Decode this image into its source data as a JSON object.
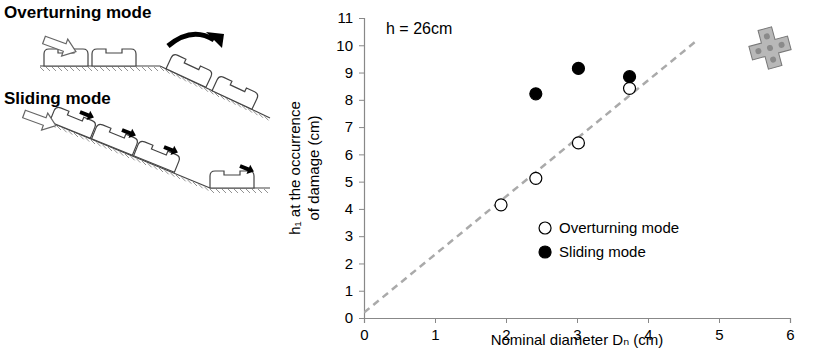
{
  "chart_data": {
    "type": "scatter",
    "annotation": "h = 26cm",
    "x_label": "Nominal diameter Dₙ (cm)",
    "y_label": "h₁ at the occurrence of damage (cm)",
    "xlim": [
      0,
      6
    ],
    "xticks": [
      0,
      1,
      2,
      3,
      4,
      5,
      6
    ],
    "ylim": [
      0,
      11
    ],
    "yticks": [
      0,
      1,
      2,
      3,
      4,
      5,
      6,
      7,
      8,
      9,
      10,
      11
    ],
    "grid": false,
    "legend": "lower right",
    "series": [
      {
        "name": "Overturning mode",
        "type": "scatter",
        "marker": "open_circle",
        "color": "#000000",
        "x": [
          1.93,
          2.42,
          3.02,
          3.74
        ],
        "values": [
          4.15,
          5.12,
          6.42,
          8.42
        ]
      },
      {
        "name": "Sliding mode",
        "type": "scatter",
        "marker": "filled_circle",
        "color": "#000000",
        "x": [
          2.42,
          3.02,
          3.74
        ],
        "values": [
          8.22,
          9.15,
          8.85
        ]
      },
      {
        "type": "line",
        "line_style": "dashed",
        "color": "#aaaaaa",
        "x": [
          0,
          4.7
        ],
        "values": [
          0.2,
          10.2
        ]
      }
    ]
  },
  "diagram": {
    "modes": [
      "Overturning mode",
      "Sliding mode"
    ]
  }
}
